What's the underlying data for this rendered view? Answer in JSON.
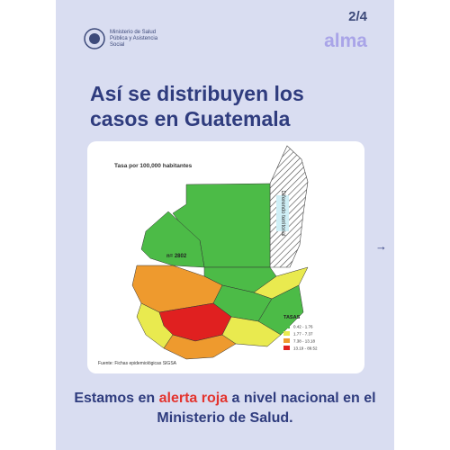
{
  "header": {
    "logo_text": "Ministerio de Salud Pública y Asistencia Social",
    "page": "2/4",
    "brand": "alma"
  },
  "title": "Así se distribuyen los casos en Guatemala",
  "map": {
    "caption": "Tasa por 100,000 habitantes",
    "dispute_label": "Diferendo territorial",
    "count_label": "n= 2802",
    "source": "Fuente: Fichas epidemiológicas SIGSA",
    "legend": {
      "title": "TASAS",
      "items": [
        {
          "label": "0.42 - 1.76",
          "color": "#4cbb47"
        },
        {
          "label": "1.77 - 7.37",
          "color": "#e9ea4f"
        },
        {
          "label": "7.38 - 13.18",
          "color": "#ee9a2e"
        },
        {
          "label": "13.19 - 89.52",
          "color": "#e02020"
        }
      ]
    }
  },
  "arrow": "→",
  "footer": {
    "before": "Estamos en ",
    "highlight": "alerta roja",
    "after": " a nivel nacional en el Ministerio de Salud."
  }
}
